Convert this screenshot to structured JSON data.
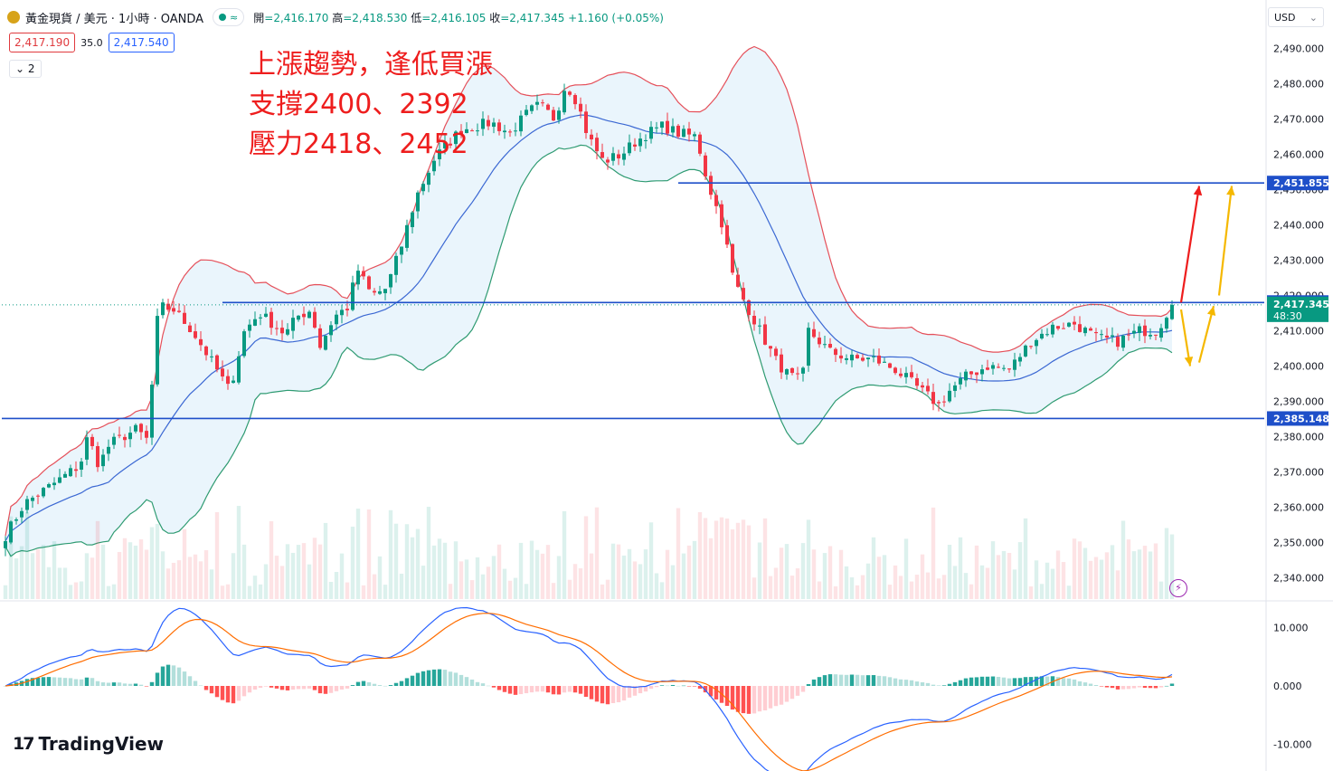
{
  "header": {
    "symbol": "黃金現貨 / 美元 · 1小時 · OANDA",
    "status_icon": "approx-icon",
    "ohlc": {
      "open_label": "開",
      "open": "2,416.170",
      "high_label": "高",
      "high": "2,418.530",
      "low_label": "低",
      "low": "2,416.105",
      "close_label": "收",
      "close": "2,417.345",
      "change": "+1.160 (+0.05%)"
    }
  },
  "order_row": {
    "sell_price": "2,417.190",
    "spread": "35.0",
    "buy_price": "2,417.540"
  },
  "indicator_toggle": {
    "label": "2"
  },
  "currency_selector": {
    "label": "USD"
  },
  "annotation": {
    "line1": "上漲趨勢，逢低買漲",
    "line2": "支撐2400、2392",
    "line3": "壓力2418、2452"
  },
  "branding": {
    "text": "TradingView"
  },
  "colors": {
    "up": "#089981",
    "down": "#f23645",
    "bb_upper": "#e5505a",
    "bb_lower": "#2f9b72",
    "bb_mid": "#3b68d3",
    "bb_fill": "#e3f1fb",
    "hline": "#1e4fc9",
    "macd": "#2962ff",
    "signal": "#ff6d00",
    "arrow_red": "#ee1d1d",
    "arrow_yellow": "#f5b800"
  },
  "chart_data": {
    "type": "candlestick",
    "title": "",
    "price_axis": {
      "min": 2334,
      "max": 2496,
      "ticks": [
        2340,
        2350,
        2360,
        2370,
        2380,
        2390,
        2400,
        2410,
        2420,
        2430,
        2440,
        2450,
        2460,
        2470,
        2480,
        2490
      ]
    },
    "tick_labels": [
      "2,340.000",
      "2,350.000",
      "2,360.000",
      "2,370.000",
      "2,380.000",
      "2,390.000",
      "2,400.000",
      "2,410.000",
      "2,420.000",
      "2,430.000",
      "2,440.000",
      "2,450.000",
      "2,460.000",
      "2,470.000",
      "2,480.000",
      "2,490.000"
    ],
    "bars_count": 216,
    "close_path": [
      [
        0,
        2352
      ],
      [
        5,
        2361
      ],
      [
        12,
        2366
      ],
      [
        20,
        2372
      ],
      [
        22,
        2380
      ],
      [
        25,
        2372
      ],
      [
        28,
        2378
      ],
      [
        35,
        2382
      ],
      [
        38,
        2379
      ],
      [
        41,
        2417
      ],
      [
        45,
        2416
      ],
      [
        50,
        2410
      ],
      [
        56,
        2400
      ],
      [
        60,
        2393
      ],
      [
        64,
        2410
      ],
      [
        68,
        2415
      ],
      [
        75,
        2409
      ],
      [
        78,
        2414
      ],
      [
        82,
        2416
      ],
      [
        84,
        2405
      ],
      [
        88,
        2414
      ],
      [
        92,
        2417
      ],
      [
        94,
        2428
      ],
      [
        98,
        2420
      ],
      [
        102,
        2422
      ],
      [
        106,
        2434
      ],
      [
        110,
        2448
      ],
      [
        115,
        2459
      ],
      [
        122,
        2467
      ],
      [
        130,
        2469
      ],
      [
        135,
        2466
      ],
      [
        140,
        2472
      ],
      [
        143,
        2474
      ],
      [
        147,
        2470
      ],
      [
        150,
        2480
      ],
      [
        153,
        2475
      ],
      [
        156,
        2465
      ],
      [
        160,
        2458
      ],
      [
        165,
        2460
      ],
      [
        168,
        2463
      ],
      [
        172,
        2466
      ],
      [
        176,
        2468
      ],
      [
        180,
        2466
      ],
      [
        185,
        2465
      ],
      [
        188,
        2452
      ],
      [
        192,
        2440
      ],
      [
        195,
        2424
      ],
      [
        198,
        2418
      ],
      [
        201,
        2412
      ],
      [
        203,
        2408
      ],
      [
        206,
        2402
      ],
      [
        209,
        2398
      ],
      [
        212,
        2396
      ],
      [
        215,
        2400
      ]
    ],
    "close_path_2": [
      [
        0,
        2410
      ],
      [
        4,
        2404
      ],
      [
        8,
        2402
      ],
      [
        12,
        2402
      ],
      [
        16,
        2399
      ],
      [
        20,
        2394
      ],
      [
        24,
        2389
      ],
      [
        26,
        2393
      ],
      [
        29,
        2397
      ],
      [
        33,
        2400
      ],
      [
        37,
        2399
      ],
      [
        41,
        2407
      ],
      [
        45,
        2411
      ],
      [
        49,
        2412
      ],
      [
        53,
        2408
      ],
      [
        57,
        2407
      ],
      [
        61,
        2410
      ],
      [
        64,
        2410
      ],
      [
        65,
        2412
      ],
      [
        67,
        2418
      ]
    ],
    "price_labels": [
      {
        "value": 2451.855,
        "text": "2,451.855",
        "color": "#1e4fc9"
      },
      {
        "value": 2418.004,
        "text": "2,418.004",
        "color": "#1e4fc9"
      },
      {
        "value": 2417.345,
        "text": "2,417.345",
        "countdown": "48:30",
        "color": "#089981"
      },
      {
        "value": 2385.148,
        "text": "2,385.148",
        "color": "#1e4fc9"
      }
    ],
    "horizontal_lines": [
      2451.855,
      2418.004,
      2385.148
    ],
    "macd_axis": {
      "min": -14,
      "max": 14,
      "ticks": [
        10,
        0,
        -10
      ],
      "tick_labels": [
        "10.000",
        "0.000",
        "-10.000"
      ]
    }
  }
}
